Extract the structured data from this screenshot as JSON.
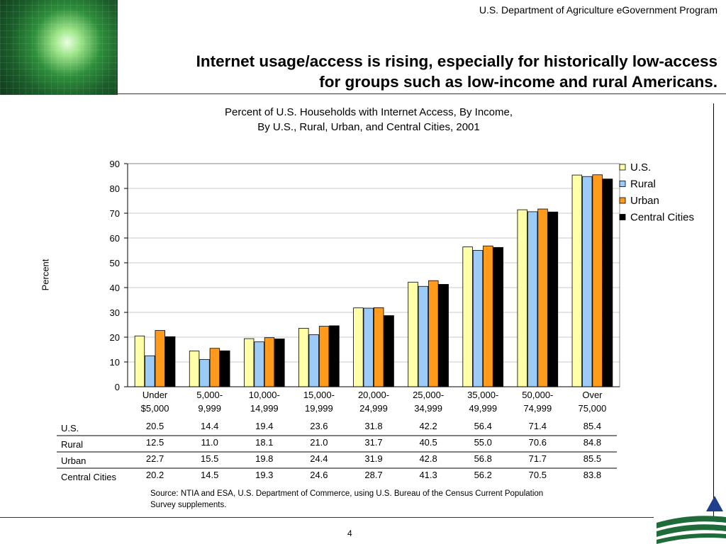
{
  "header": {
    "department": "U.S. Department of Agriculture eGovernment Program",
    "title_line1": "Internet usage/access is rising, especially for historically low-access",
    "title_line2": "for groups such as low-income and rural Americans."
  },
  "chart_data": {
    "type": "bar",
    "title_line1": "Percent of U.S. Households with Internet Access, By Income,",
    "title_line2": "By U.S., Rural, Urban, and Central Cities, 2001",
    "ylabel": "Percent",
    "xlabel": "",
    "ylim": [
      0,
      90
    ],
    "yticks": [
      0,
      10,
      20,
      30,
      40,
      50,
      60,
      70,
      80,
      90
    ],
    "grid": true,
    "legend_position": "top-right",
    "categories": [
      [
        "Under",
        "$5,000"
      ],
      [
        "5,000-",
        "9,999"
      ],
      [
        "10,000-",
        "14,999"
      ],
      [
        "15,000-",
        "19,999"
      ],
      [
        "20,000-",
        "24,999"
      ],
      [
        "25,000-",
        "34,999"
      ],
      [
        "35,000-",
        "49,999"
      ],
      [
        "50,000-",
        "74,999"
      ],
      [
        "Over",
        "75,000"
      ]
    ],
    "series": [
      {
        "name": "U.S.",
        "color": "#ffffa8",
        "values": [
          20.5,
          14.4,
          19.4,
          23.6,
          31.8,
          42.2,
          56.4,
          71.4,
          85.4
        ]
      },
      {
        "name": "Rural",
        "color": "#9ccbf7",
        "values": [
          12.5,
          11.0,
          18.1,
          21.0,
          31.7,
          40.5,
          55.0,
          70.6,
          84.8
        ]
      },
      {
        "name": "Urban",
        "color": "#ff9a1a",
        "values": [
          22.7,
          15.5,
          19.8,
          24.4,
          31.9,
          42.8,
          56.8,
          71.7,
          85.5
        ]
      },
      {
        "name": "Central Cities",
        "color": "#000000",
        "values": [
          20.2,
          14.5,
          19.3,
          24.6,
          28.7,
          41.3,
          56.2,
          70.5,
          83.8
        ]
      }
    ],
    "table": {
      "rows": [
        {
          "label": "U.S.",
          "values": [
            "20.5",
            "14.4",
            "19.4",
            "23.6",
            "31.8",
            "42.2",
            "56.4",
            "71.4",
            "85.4"
          ]
        },
        {
          "label": "Rural",
          "values": [
            "12.5",
            "11.0",
            "18.1",
            "21.0",
            "31.7",
            "40.5",
            "55.0",
            "70.6",
            "84.8"
          ]
        },
        {
          "label": "Urban",
          "values": [
            "22.7",
            "15.5",
            "19.8",
            "24.4",
            "31.9",
            "42.8",
            "56.8",
            "71.7",
            "85.5"
          ]
        },
        {
          "label": "Central Cities",
          "values": [
            "20.2",
            "14.5",
            "19.3",
            "24.6",
            "28.7",
            "41.3",
            "56.2",
            "70.5",
            "83.8"
          ]
        }
      ]
    },
    "source_line1": "Source:  NTIA and ESA, U.S. Department of Commerce, using U.S. Bureau of the Census Current Population",
    "source_line2": "Survey supplements."
  },
  "footer": {
    "page_number": "4"
  }
}
